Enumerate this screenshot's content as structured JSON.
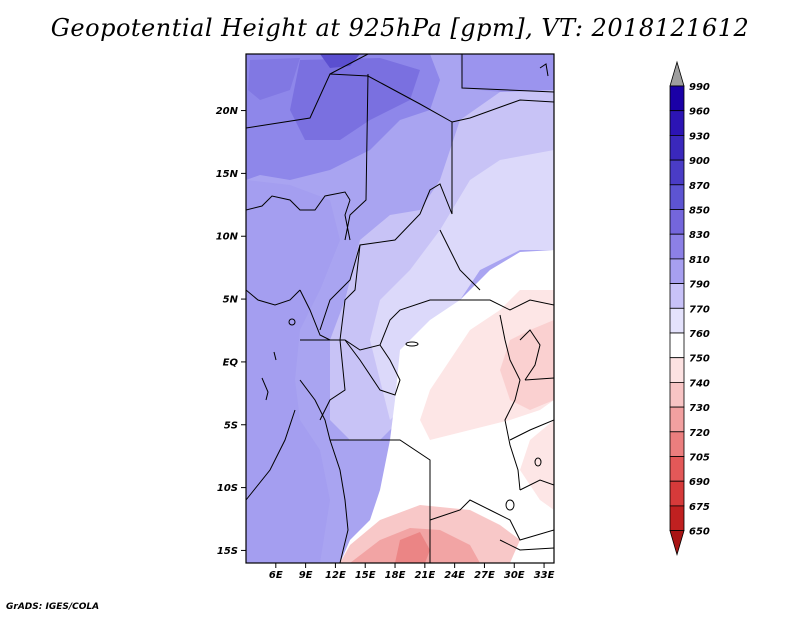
{
  "title": "Geopotential Height at 925hPa [gpm], VT: 2018121612",
  "footer": "GrADS: IGES/COLA",
  "map": {
    "lat_ticks": [
      "20N",
      "15N",
      "10N",
      "5N",
      "EQ",
      "5S",
      "10S",
      "15S"
    ],
    "lon_ticks": [
      "6E",
      "9E",
      "12E",
      "15E",
      "18E",
      "21E",
      "24E",
      "27E",
      "30E",
      "33E"
    ],
    "lon_range": [
      3,
      34
    ],
    "lat_range": [
      -16,
      24.5
    ],
    "variable": "Geopotential Height",
    "level": "925hPa",
    "units": "gpm",
    "valid_time": "2018121612"
  },
  "colorbar": {
    "levels": [
      "990",
      "960",
      "930",
      "900",
      "870",
      "850",
      "830",
      "810",
      "790",
      "770",
      "760",
      "750",
      "740",
      "730",
      "720",
      "705",
      "690",
      "675",
      "650"
    ],
    "colors": [
      "#9e9e9e",
      "#1a00a6",
      "#2c14b4",
      "#3a28bc",
      "#4a3cc6",
      "#5d54d2",
      "#7466dc",
      "#8c80e6",
      "#a79ff0",
      "#c8c2f8",
      "#e4e2fc",
      "#ffffff",
      "#fde2e2",
      "#f8c4c4",
      "#f2a0a0",
      "#eb7e7e",
      "#e35858",
      "#d63a3a",
      "#c02020",
      "#a81414"
    ]
  }
}
